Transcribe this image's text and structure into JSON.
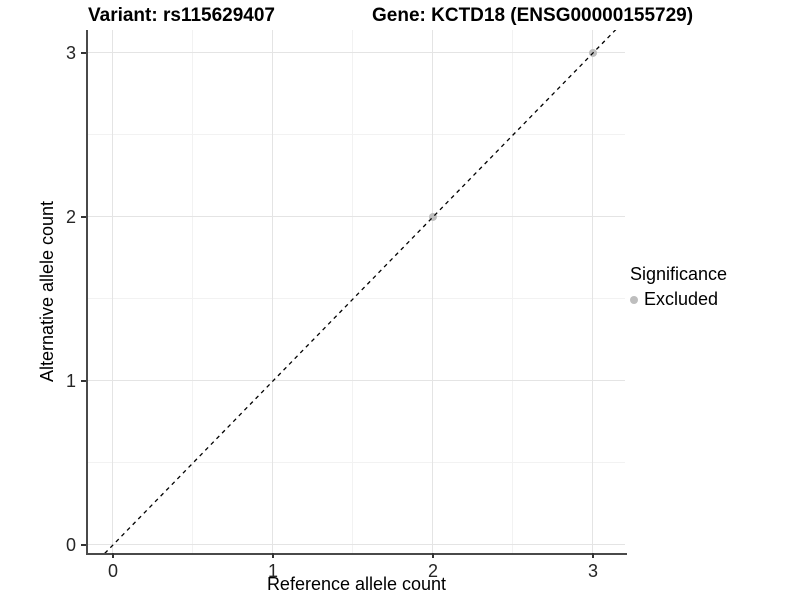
{
  "colors": {
    "background": "#ffffff",
    "grid_major": "#e4e4e4",
    "grid_minor": "#f2f2f2",
    "axis_line": "#4a4a4a",
    "tick_mark": "#333333",
    "tick_label": "#262626",
    "text": "#000000",
    "excluded_point": "#bebebe",
    "identity_line": "#000000"
  },
  "chart_data": {
    "type": "scatter",
    "titles": {
      "variant": "Variant: rs115629407",
      "gene": "Gene: KCTD18 (ENSG00000155729)"
    },
    "xlabel": "Reference allele count",
    "ylabel": "Alternative allele count",
    "xlim": [
      -0.156,
      3.2
    ],
    "ylim": [
      -0.049,
      3.14
    ],
    "xticks": [
      0,
      1,
      2,
      3
    ],
    "yticks": [
      0,
      1,
      2,
      3
    ],
    "xticks_minor": [
      0.5,
      1.5,
      2.5
    ],
    "yticks_minor": [
      0.5,
      1.5,
      2.5
    ],
    "grid": "major+minor",
    "identity_line": {
      "slope": 1,
      "intercept": 0,
      "style": "dashed",
      "color": "#000000",
      "dash": "4 4"
    },
    "series": [
      {
        "name": "Excluded",
        "color": "#bebebe",
        "marker": "circle",
        "points": [
          {
            "x": 2,
            "y": 2
          },
          {
            "x": 3,
            "y": 3
          }
        ]
      }
    ],
    "legend": {
      "title": "Significance",
      "position": "right",
      "items": [
        {
          "label": "Excluded",
          "color": "#bebebe",
          "marker": "circle"
        }
      ]
    }
  }
}
